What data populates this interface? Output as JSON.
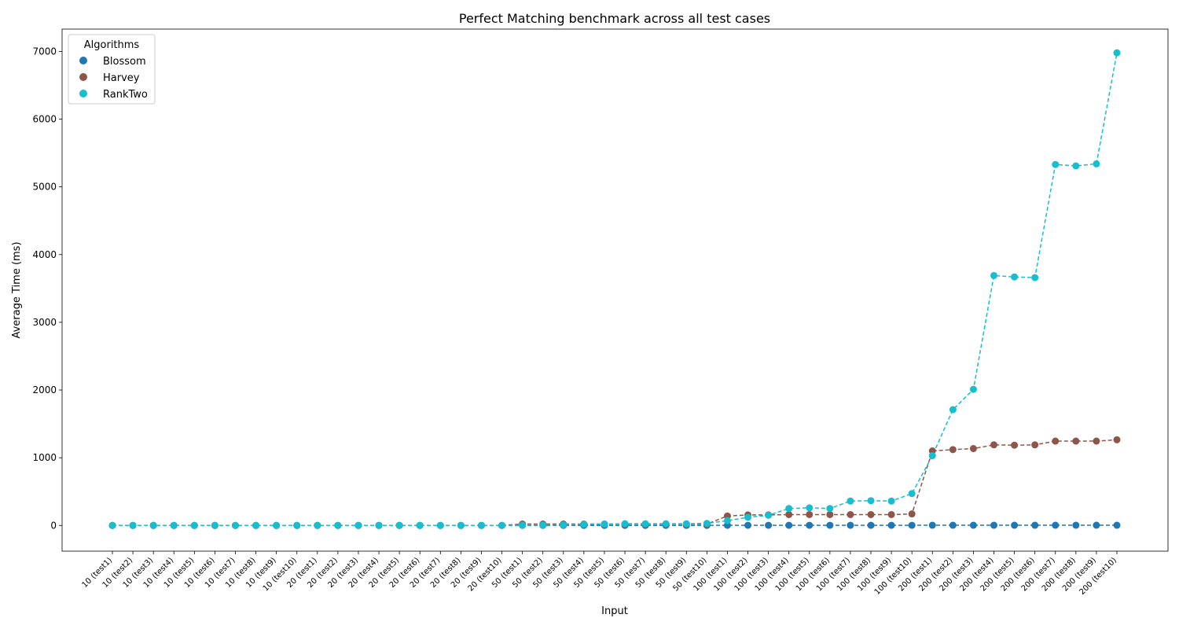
{
  "chart_data": {
    "type": "line",
    "title": "Perfect Matching benchmark across all test cases",
    "xlabel": "Input",
    "ylabel": "Average Time (ms)",
    "ylim": [
      -380,
      7330
    ],
    "yticks": [
      0,
      1000,
      2000,
      3000,
      4000,
      5000,
      6000,
      7000
    ],
    "grid": false,
    "legend_title": "Algorithms",
    "legend_position": "top-left",
    "categories": [
      "10 (test1)",
      "10 (test2)",
      "10 (test3)",
      "10 (test4)",
      "10 (test5)",
      "10 (test6)",
      "10 (test7)",
      "10 (test8)",
      "10 (test9)",
      "10 (test10)",
      "20 (test1)",
      "20 (test2)",
      "20 (test3)",
      "20 (test4)",
      "20 (test5)",
      "20 (test6)",
      "20 (test7)",
      "20 (test8)",
      "20 (test9)",
      "20 (test10)",
      "50 (test1)",
      "50 (test2)",
      "50 (test3)",
      "50 (test4)",
      "50 (test5)",
      "50 (test6)",
      "50 (test7)",
      "50 (test8)",
      "50 (test9)",
      "50 (test10)",
      "100 (test1)",
      "100 (test2)",
      "100 (test3)",
      "100 (test4)",
      "100 (test5)",
      "100 (test6)",
      "100 (test7)",
      "100 (test8)",
      "100 (test9)",
      "100 (test10)",
      "200 (test1)",
      "200 (test2)",
      "200 (test3)",
      "200 (test4)",
      "200 (test5)",
      "200 (test6)",
      "200 (test7)",
      "200 (test8)",
      "200 (test9)",
      "200 (test10)"
    ],
    "series": [
      {
        "name": "Blossom",
        "color": "#1f77b4",
        "values": [
          0,
          0,
          0,
          0,
          0,
          0,
          0,
          0,
          0,
          0,
          0,
          0,
          0,
          0,
          0,
          0,
          0,
          0,
          0,
          0,
          1,
          1,
          1,
          1,
          1,
          1,
          1,
          1,
          1,
          1,
          2,
          2,
          2,
          2,
          2,
          2,
          2,
          2,
          2,
          2,
          3,
          3,
          3,
          3,
          3,
          3,
          3,
          3,
          3,
          3
        ]
      },
      {
        "name": "Harvey",
        "color": "#8c564b",
        "values": [
          0,
          0,
          0,
          0,
          0,
          0,
          0,
          0,
          0,
          0,
          1,
          1,
          1,
          1,
          1,
          1,
          1,
          1,
          1,
          1,
          20,
          20,
          20,
          20,
          20,
          20,
          20,
          20,
          20,
          20,
          140,
          155,
          155,
          160,
          160,
          160,
          160,
          160,
          160,
          170,
          1100,
          1120,
          1135,
          1190,
          1185,
          1190,
          1245,
          1245,
          1245,
          1265
        ]
      },
      {
        "name": "RankTwo",
        "color": "#17becf",
        "values": [
          0,
          0,
          0,
          0,
          0,
          0,
          0,
          0,
          0,
          0,
          0,
          0,
          0,
          0,
          0,
          0,
          0,
          0,
          0,
          0,
          3,
          5,
          8,
          15,
          20,
          25,
          25,
          25,
          25,
          30,
          70,
          120,
          150,
          250,
          260,
          250,
          360,
          365,
          360,
          470,
          1030,
          1710,
          2010,
          3690,
          3670,
          3660,
          5330,
          5310,
          5340,
          6980
        ]
      }
    ]
  }
}
